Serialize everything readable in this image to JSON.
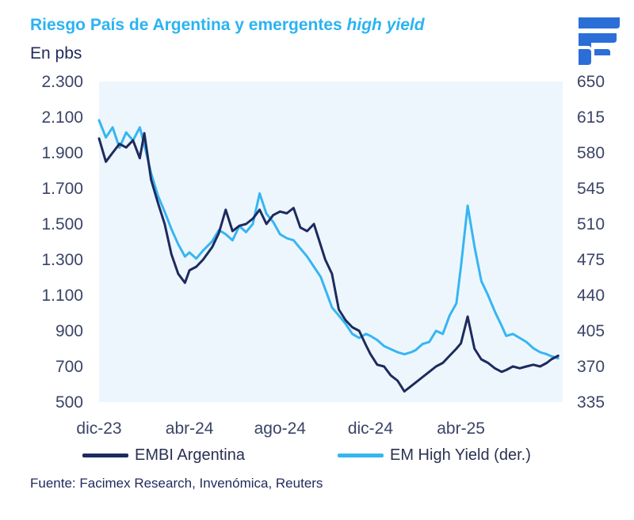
{
  "header": {
    "title_main": "Riesgo País de Argentina y emergentes",
    "title_italic": "high yield",
    "unit": "En pbs"
  },
  "footer": {
    "source": "Fuente: Facimex Research, Invenómica, Reuters"
  },
  "colors": {
    "embi": "#1d2b5e",
    "em_high_yield": "#35b6f2",
    "plot_bg": "#eef6fd",
    "title": "#2bb3f3",
    "logo": "#2b6ed8"
  },
  "logo": {
    "name": "facimex-logo"
  },
  "chart_data": {
    "type": "line",
    "x_ticks": [
      "dic-23",
      "abr-24",
      "ago-24",
      "dic-24",
      "abr-25"
    ],
    "x_tick_positions": [
      0,
      4,
      8,
      12,
      16
    ],
    "xlim": [
      0,
      20.5
    ],
    "y_left": {
      "ticks": [
        "500",
        "700",
        "900",
        "1.100",
        "1.300",
        "1.500",
        "1.700",
        "1.900",
        "2.100",
        "2.300"
      ],
      "lim": [
        500,
        2300
      ]
    },
    "y_right": {
      "ticks": [
        "335",
        "370",
        "405",
        "440",
        "475",
        "510",
        "545",
        "580",
        "615",
        "650"
      ],
      "lim": [
        335,
        650
      ]
    },
    "legend_position": "bottom",
    "series": [
      {
        "name": "EMBI Argentina",
        "axis": "left",
        "x": [
          0,
          0.3,
          0.6,
          0.9,
          1.2,
          1.5,
          1.8,
          2.0,
          2.3,
          2.6,
          2.9,
          3.2,
          3.5,
          3.8,
          4.0,
          4.3,
          4.6,
          5.0,
          5.3,
          5.6,
          5.9,
          6.2,
          6.5,
          6.8,
          7.1,
          7.4,
          7.7,
          8.0,
          8.3,
          8.6,
          8.9,
          9.2,
          9.5,
          9.8,
          10.0,
          10.3,
          10.6,
          10.9,
          11.2,
          11.5,
          11.8,
          12.0,
          12.3,
          12.6,
          12.9,
          13.2,
          13.5,
          13.8,
          14.0,
          14.3,
          14.6,
          14.9,
          15.2,
          15.5,
          15.8,
          16.0,
          16.3,
          16.6,
          16.9,
          17.2,
          17.5,
          17.8,
          18.0,
          18.3,
          18.6,
          18.9,
          19.2,
          19.5,
          19.8,
          20.0,
          20.3
        ],
        "y": [
          1980,
          1850,
          1900,
          1950,
          1930,
          1970,
          1870,
          2010,
          1750,
          1620,
          1500,
          1330,
          1220,
          1170,
          1240,
          1260,
          1300,
          1370,
          1450,
          1580,
          1460,
          1490,
          1500,
          1530,
          1580,
          1500,
          1550,
          1570,
          1560,
          1590,
          1480,
          1460,
          1500,
          1380,
          1300,
          1220,
          1020,
          960,
          920,
          900,
          820,
          770,
          710,
          700,
          650,
          620,
          560,
          590,
          610,
          640,
          670,
          700,
          720,
          760,
          800,
          830,
          980,
          800,
          740,
          720,
          690,
          670,
          680,
          700,
          690,
          700,
          710,
          700,
          720,
          740,
          760
        ]
      },
      {
        "name": "EM High Yield (der.)",
        "axis": "right",
        "x": [
          0,
          0.3,
          0.6,
          0.9,
          1.2,
          1.5,
          1.8,
          2.0,
          2.3,
          2.6,
          2.9,
          3.2,
          3.5,
          3.8,
          4.0,
          4.3,
          4.6,
          5.0,
          5.3,
          5.6,
          5.9,
          6.2,
          6.5,
          6.8,
          7.1,
          7.4,
          7.7,
          8.0,
          8.3,
          8.6,
          8.9,
          9.2,
          9.5,
          9.8,
          10.0,
          10.3,
          10.6,
          10.9,
          11.2,
          11.5,
          11.8,
          12.0,
          12.3,
          12.6,
          12.9,
          13.2,
          13.5,
          13.8,
          14.0,
          14.3,
          14.6,
          14.9,
          15.2,
          15.5,
          15.8,
          16.0,
          16.3,
          16.6,
          16.9,
          17.2,
          17.5,
          17.8,
          18.0,
          18.3,
          18.6,
          18.9,
          19.2,
          19.5,
          19.8,
          20.0,
          20.3
        ],
        "y": [
          612,
          595,
          605,
          585,
          600,
          592,
          605,
          588,
          560,
          538,
          522,
          505,
          490,
          478,
          482,
          476,
          484,
          493,
          504,
          500,
          494,
          508,
          502,
          510,
          540,
          520,
          512,
          500,
          496,
          494,
          486,
          478,
          468,
          458,
          446,
          428,
          420,
          412,
          402,
          398,
          402,
          400,
          396,
          390,
          387,
          384,
          382,
          384,
          386,
          392,
          394,
          405,
          402,
          420,
          432,
          468,
          528,
          488,
          454,
          440,
          424,
          410,
          400,
          402,
          398,
          394,
          388,
          384,
          382,
          380,
          378
        ]
      }
    ]
  }
}
